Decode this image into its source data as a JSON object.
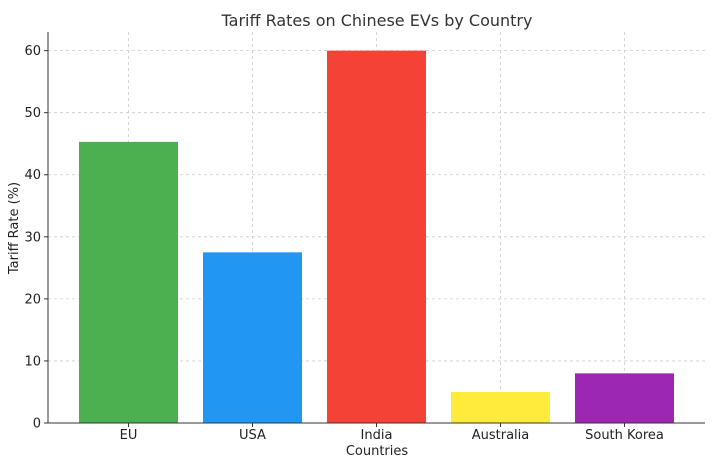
{
  "chart_data": {
    "type": "bar",
    "title": "Tariff Rates on Chinese EVs by Country",
    "xlabel": "Countries",
    "ylabel": "Tariff Rate (%)",
    "categories": [
      "EU",
      "USA",
      "India",
      "Australia",
      "South Korea"
    ],
    "values": [
      45.3,
      27.5,
      60,
      5,
      8
    ],
    "colors": [
      "#4CAF50",
      "#2196F3",
      "#F44336",
      "#FFEB3B",
      "#9C27B0"
    ],
    "ylim": [
      0,
      63
    ],
    "yticks": [
      0,
      10,
      20,
      30,
      40,
      50,
      60
    ],
    "grid": true
  }
}
